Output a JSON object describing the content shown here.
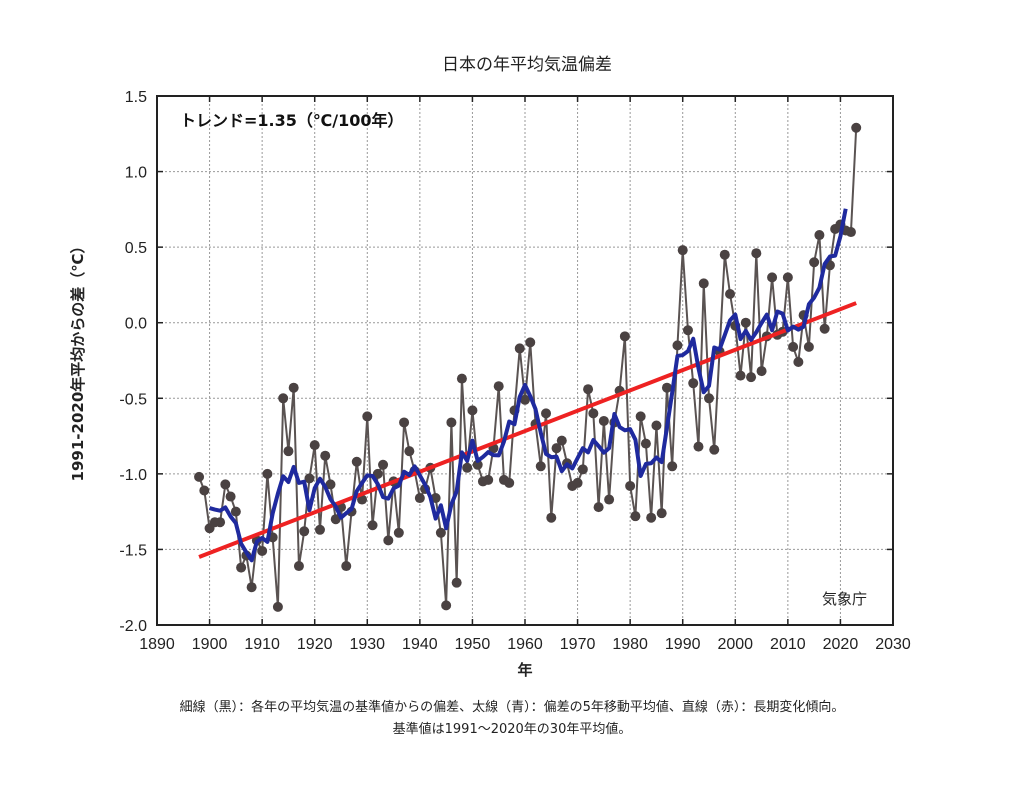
{
  "chart_data": {
    "type": "line",
    "title": "日本の年平均気温偏差",
    "xlabel": "年",
    "ylabel": "1991-2020年平均からの差（℃）",
    "xlim": [
      1890,
      2030
    ],
    "ylim": [
      -2.0,
      1.5
    ],
    "xticks": [
      1890,
      1900,
      1910,
      1920,
      1930,
      1940,
      1950,
      1960,
      1970,
      1980,
      1990,
      2000,
      2010,
      2020,
      2030
    ],
    "xtick_labels": [
      "1890",
      "1900",
      "1910",
      "1920",
      "1930",
      "1940",
      "1950",
      "1960",
      "1970",
      "1980",
      "1990",
      "2000",
      "2010",
      "2020",
      "2030"
    ],
    "yticks": [
      1.5,
      1.0,
      0.5,
      0.0,
      -0.5,
      -1.0,
      -1.5,
      -2.0
    ],
    "ytick_labels": [
      "1.5",
      "1.0",
      "0.5",
      "0.0",
      "-0.5",
      "-1.0",
      "-1.5",
      "-2.0"
    ],
    "grid": true,
    "annotation": "トレンド=1.35（℃/100年）",
    "source_label": "気象庁",
    "series": [
      {
        "name": "各年の平均気温の基準値からの偏差",
        "style": "thin-black-with-markers",
        "color": "#5a5352",
        "marker_color": "#4a4242",
        "x_start": 1898,
        "values": [
          -1.02,
          -1.11,
          -1.36,
          -1.32,
          -1.32,
          -1.07,
          -1.15,
          -1.25,
          -1.62,
          -1.54,
          -1.75,
          -1.44,
          -1.51,
          -1.0,
          -1.42,
          -1.88,
          -0.5,
          -0.85,
          -0.43,
          -1.61,
          -1.38,
          -1.03,
          -0.81,
          -1.37,
          -0.88,
          -1.07,
          -1.3,
          -1.22,
          -1.61,
          -1.25,
          -0.92,
          -1.17,
          -0.62,
          -1.34,
          -1.0,
          -0.94,
          -1.44,
          -1.05,
          -1.39,
          -0.66,
          -0.85,
          -0.98,
          -1.16,
          -1.1,
          -0.96,
          -1.16,
          -1.39,
          -1.87,
          -0.66,
          -1.72,
          -0.37,
          -0.96,
          -0.58,
          -0.94,
          -1.05,
          -1.04,
          -0.83,
          -0.42,
          -1.04,
          -1.06,
          -0.58,
          -0.17,
          -0.51,
          -0.13,
          -0.67,
          -0.95,
          -0.6,
          -1.29,
          -0.83,
          -0.78,
          -0.93,
          -1.08,
          -1.06,
          -0.97,
          -0.44,
          -0.6,
          -1.22,
          -0.65,
          -1.17,
          -0.66,
          -0.45,
          -0.09,
          -1.08,
          -1.28,
          -0.62,
          -0.8,
          -1.29,
          -0.68,
          -1.26,
          -0.43,
          -0.95,
          -0.15,
          0.48,
          -0.05,
          -0.4,
          -0.82,
          0.26,
          -0.5,
          -0.84,
          -0.19,
          0.45,
          0.19,
          -0.02,
          -0.35,
          0.0,
          -0.36,
          0.46,
          -0.32,
          -0.09,
          0.3,
          -0.08,
          -0.06,
          0.3,
          -0.16,
          -0.26,
          0.05,
          -0.16,
          0.4,
          0.58,
          -0.04,
          0.38,
          0.62,
          0.65,
          0.61,
          0.6,
          1.29
        ]
      },
      {
        "name": "偏差の5年移動平均値",
        "style": "thick-blue",
        "color": "#1f2a9e"
      },
      {
        "name": "長期変化傾向",
        "style": "straight-red",
        "color": "#ee2222",
        "x": [
          1898,
          2023
        ],
        "values": [
          -1.55,
          0.13
        ]
      }
    ],
    "legend": "none (described in caption)"
  },
  "caption": {
    "line1": "細線（黒）：各年の平均気温の基準値からの偏差、太線（青）：偏差の5年移動平均値、直線（赤）：長期変化傾向。",
    "line2": "基準値は1991～2020年の30年平均値。"
  }
}
